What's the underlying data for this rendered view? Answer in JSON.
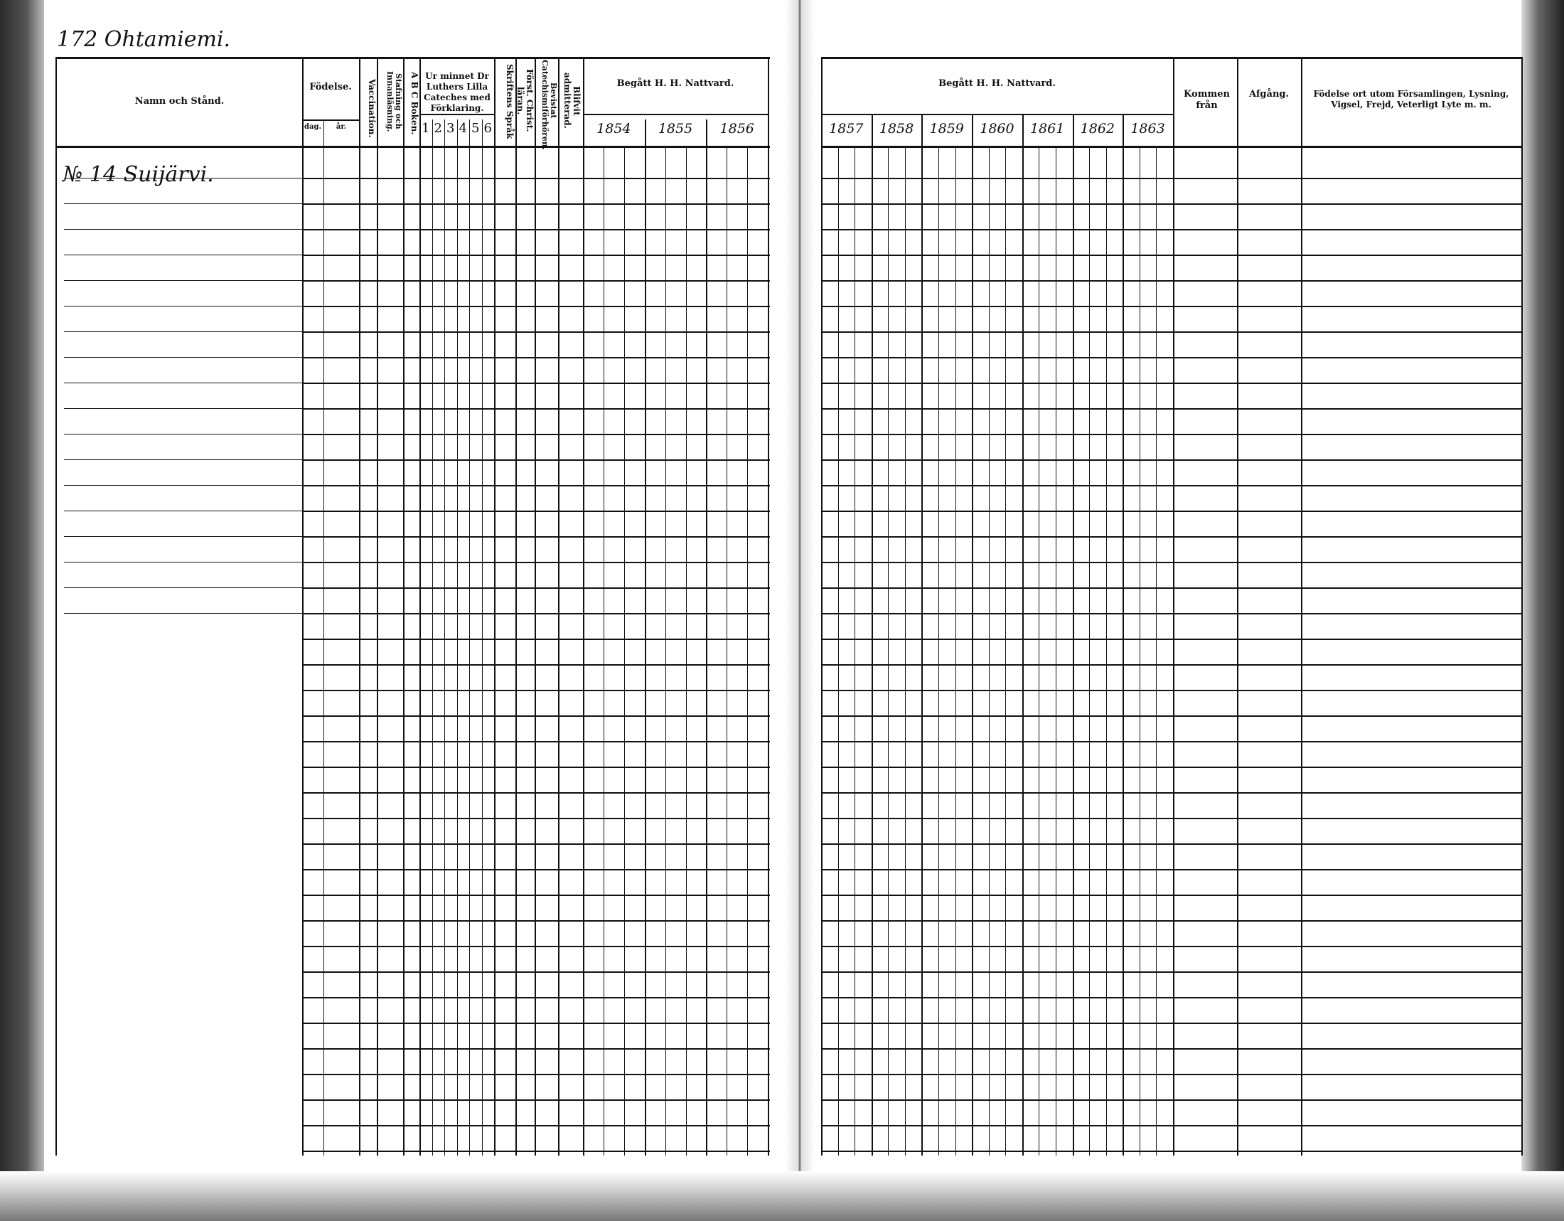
{
  "page_heading": "172 Ohtamiemi.",
  "household_entry": "№ 14 Suijärvi.",
  "left_page": {
    "columns": {
      "name": "Namn och Stånd.",
      "birth": "Födelse.",
      "birth_day": "dag.",
      "birth_year": "år.",
      "vaccination": "Vaccination.",
      "spelling": "Stafning och Innanläsning.",
      "abc": "A B C Boken.",
      "catechism": "Ur minnet Dr Luthers Lilla Cateches med Förklaring.",
      "catechism_parts": [
        "1",
        "2",
        "3",
        "4",
        "5",
        "6"
      ],
      "scripture": "Skriftens Språk",
      "christ_teaching": "Först. Christ. läran.",
      "catechism_hearing": "Bevistat Catechismiförhören.",
      "admitted": "Blifvit admitterad.",
      "communion": "Begått H. H. Nattvard.",
      "communion_years": [
        "1854",
        "1855",
        "1856"
      ]
    }
  },
  "right_page": {
    "columns": {
      "communion": "Begått H. H. Nattvard.",
      "communion_years": [
        "1857",
        "1858",
        "1859",
        "1860",
        "1861",
        "1862",
        "1863"
      ],
      "came_from": "Kommen från",
      "departure": "Afgång.",
      "remarks": "Födelse ort utom Församlingen, Lysning, Vigsel, Frejd, Veterligt Lyte m. m."
    }
  }
}
